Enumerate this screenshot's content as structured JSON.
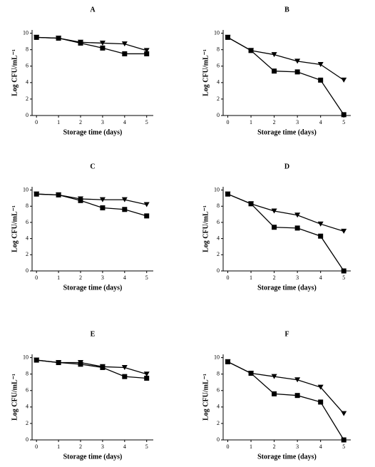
{
  "chart_data": [
    {
      "type": "line",
      "title": "A",
      "x_label": "Storage time (days)",
      "y_label": "Log CFU/mL⁻¹",
      "x": [
        0,
        1,
        2,
        3,
        4,
        5
      ],
      "xlim": [
        -0.2,
        5.3
      ],
      "ylim": [
        0,
        10.4
      ],
      "xticks": [
        0,
        1,
        2,
        3,
        4,
        5
      ],
      "yticks": [
        0,
        2,
        4,
        6,
        8,
        10
      ],
      "series": [
        {
          "color": "#000000",
          "marker": "square",
          "values": [
            9.5,
            9.4,
            8.8,
            8.2,
            7.5,
            7.5
          ]
        },
        {
          "color": "#000000",
          "marker": "triangle-down",
          "values": [
            9.5,
            9.4,
            8.9,
            8.8,
            8.7,
            7.9
          ]
        }
      ]
    },
    {
      "type": "line",
      "title": "B",
      "x_label": "Storage time (days)",
      "y_label": "Log CFU/mL⁻¹",
      "x": [
        0,
        1,
        2,
        3,
        4,
        5
      ],
      "xlim": [
        -0.2,
        5.3
      ],
      "ylim": [
        0,
        10.4
      ],
      "xticks": [
        0,
        1,
        2,
        3,
        4,
        5
      ],
      "yticks": [
        0,
        2,
        4,
        6,
        8,
        10
      ],
      "series": [
        {
          "color": "#000000",
          "marker": "square",
          "values": [
            9.5,
            7.9,
            5.4,
            5.3,
            4.3,
            0.1
          ]
        },
        {
          "color": "#000000",
          "marker": "triangle-down",
          "values": [
            9.5,
            7.9,
            7.4,
            6.6,
            6.2,
            4.3
          ]
        }
      ]
    },
    {
      "type": "line",
      "title": "C",
      "x_label": "Storage time (days)",
      "y_label": "Log CFU/mL⁻¹",
      "x": [
        0,
        1,
        2,
        3,
        4,
        5
      ],
      "xlim": [
        -0.2,
        5.3
      ],
      "ylim": [
        0,
        10.4
      ],
      "xticks": [
        0,
        1,
        2,
        3,
        4,
        5
      ],
      "yticks": [
        0,
        2,
        4,
        6,
        8,
        10
      ],
      "series": [
        {
          "color": "#000000",
          "marker": "square",
          "values": [
            9.5,
            9.4,
            8.7,
            7.8,
            7.6,
            6.8
          ]
        },
        {
          "color": "#000000",
          "marker": "triangle-down",
          "values": [
            9.5,
            9.4,
            8.9,
            8.8,
            8.8,
            8.2
          ]
        }
      ]
    },
    {
      "type": "line",
      "title": "D",
      "x_label": "Storage time (days)",
      "y_label": "Log CFU/mL⁻¹",
      "x": [
        0,
        1,
        2,
        3,
        4,
        5
      ],
      "xlim": [
        -0.2,
        5.3
      ],
      "ylim": [
        0,
        10.4
      ],
      "xticks": [
        0,
        1,
        2,
        3,
        4,
        5
      ],
      "yticks": [
        0,
        2,
        4,
        6,
        8,
        10
      ],
      "series": [
        {
          "color": "#000000",
          "marker": "square",
          "values": [
            9.5,
            8.3,
            5.4,
            5.3,
            4.3,
            0
          ]
        },
        {
          "color": "#000000",
          "marker": "triangle-down",
          "values": [
            9.5,
            8.3,
            7.4,
            6.9,
            5.8,
            4.9
          ]
        }
      ]
    },
    {
      "type": "line",
      "title": "E",
      "x_label": "Storage time (days)",
      "y_label": "Log CFU/mL⁻¹",
      "x": [
        0,
        1,
        2,
        3,
        4,
        5
      ],
      "xlim": [
        -0.2,
        5.3
      ],
      "ylim": [
        0,
        10.4
      ],
      "xticks": [
        0,
        1,
        2,
        3,
        4,
        5
      ],
      "yticks": [
        0,
        2,
        4,
        6,
        8,
        10
      ],
      "series": [
        {
          "color": "#000000",
          "marker": "square",
          "values": [
            9.7,
            9.4,
            9.2,
            8.8,
            7.7,
            7.5
          ]
        },
        {
          "color": "#000000",
          "marker": "triangle-down",
          "values": [
            9.7,
            9.4,
            9.4,
            8.9,
            8.8,
            8.0
          ]
        }
      ]
    },
    {
      "type": "line",
      "title": "F",
      "x_label": "Storage time (days)",
      "y_label": "Log CFU/mL⁻¹",
      "x": [
        0,
        1,
        2,
        3,
        4,
        5
      ],
      "xlim": [
        -0.2,
        5.3
      ],
      "ylim": [
        0,
        10.4
      ],
      "xticks": [
        0,
        1,
        2,
        3,
        4,
        5
      ],
      "yticks": [
        0,
        2,
        4,
        6,
        8,
        10
      ],
      "series": [
        {
          "color": "#000000",
          "marker": "square",
          "values": [
            9.5,
            8.1,
            5.6,
            5.4,
            4.6,
            0
          ]
        },
        {
          "color": "#000000",
          "marker": "triangle-down",
          "values": [
            9.5,
            8.1,
            7.7,
            7.3,
            6.4,
            3.2
          ]
        }
      ]
    }
  ]
}
